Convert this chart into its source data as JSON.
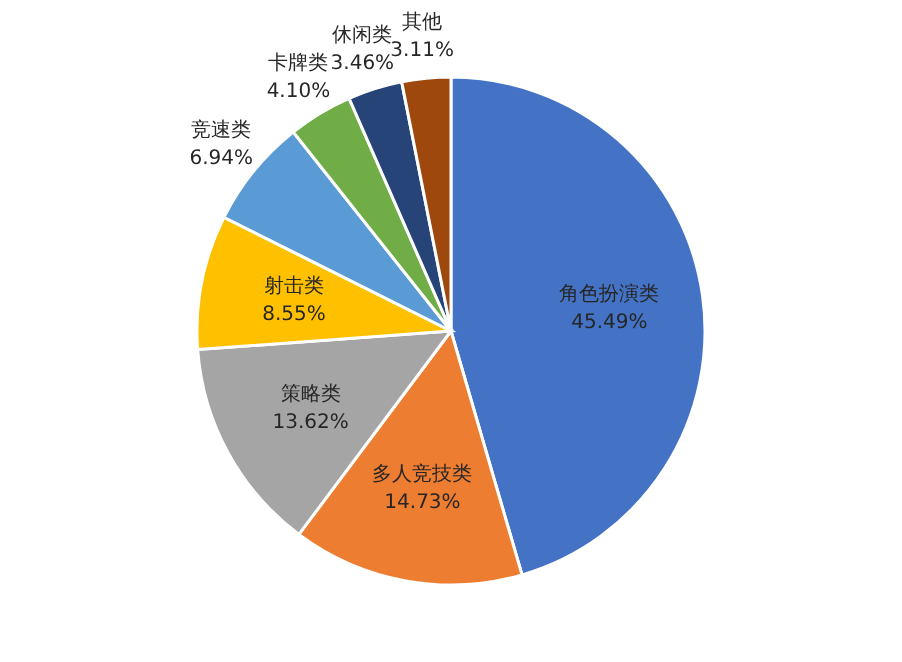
{
  "chart_data": {
    "type": "pie",
    "categories": [
      "角色扮演类",
      "多人竞技类",
      "策略类",
      "射击类",
      "竞速类",
      "卡牌类",
      "休闲类",
      "其他"
    ],
    "values": [
      45.49,
      14.73,
      13.62,
      8.55,
      6.94,
      4.1,
      3.46,
      3.11
    ],
    "colors": [
      "#4472c4",
      "#ed7d31",
      "#a5a5a5",
      "#ffc000",
      "#5b9bd5",
      "#70ad47",
      "#264478",
      "#9e480e"
    ],
    "value_labels": [
      "45.49%",
      "14.73%",
      "13.62%",
      "8.55%",
      "6.94%",
      "4.10%",
      "3.46%",
      "3.11%"
    ]
  }
}
